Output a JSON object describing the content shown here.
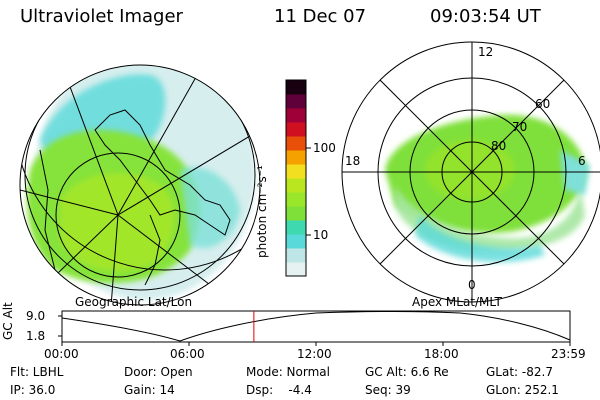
{
  "header": {
    "instrument": "Ultraviolet Imager",
    "date": "11 Dec 07",
    "time": "09:03:54 UT"
  },
  "geo_panel": {
    "label": "Geographic Lat/Lon"
  },
  "apex_panel": {
    "label": "Apex MLat/MLT",
    "mlt_labels": [
      "12",
      "18",
      "6",
      "0"
    ],
    "mlat_labels": [
      "60",
      "70",
      "80"
    ]
  },
  "colorbar": {
    "unit_label": "photon cm⁻²s⁻¹",
    "ticks": [
      "100",
      "10"
    ],
    "tick_values": [
      100,
      10
    ],
    "scale": "log",
    "colors": [
      "#e6f2f2",
      "#bfe6e6",
      "#59d9d9",
      "#3fd9b0",
      "#7fe03a",
      "#9ae62a",
      "#b9e61e",
      "#f2e020",
      "#f5a200",
      "#e8500a",
      "#d01020",
      "#a00038",
      "#60003a",
      "#180010"
    ]
  },
  "altitude_plot": {
    "ylabel": "GC Alt",
    "y_ticks": [
      "9.0",
      "1.8"
    ],
    "x_ticks": [
      "00:00",
      "06:00",
      "12:00",
      "18:00",
      "23:59"
    ],
    "marker_time_hours": 9.065,
    "marker_color": "#e00000"
  },
  "footer": {
    "row1": [
      "Flt: LBHL",
      "Door: Open",
      "Mode: Normal",
      "GC Alt: 6.6 Re",
      "GLat: -82.7"
    ],
    "row2": [
      "IP: 36.0",
      "Gain: 14",
      "Dsp:    -4.4",
      "Seq: 39",
      "GLon: 252.1"
    ]
  }
}
